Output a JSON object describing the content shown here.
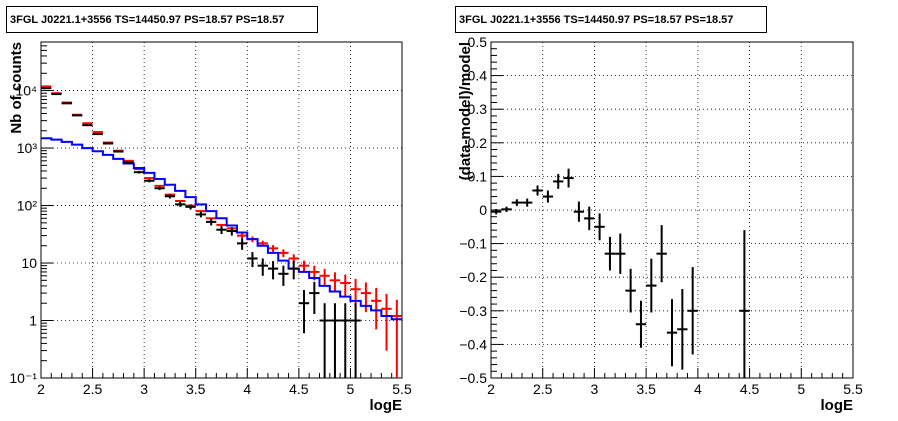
{
  "chart_data": [
    {
      "type": "line",
      "title": "3FGL J0221.1+3556 TS=14450.97 PS=18.57 PS=18.57",
      "xlabel": "logE",
      "ylabel": "Nb of counts",
      "xlim": [
        2,
        5.5
      ],
      "ylim": [
        0.1,
        70000
      ],
      "yscale": "log",
      "grid": true,
      "x_ticks": [
        "2",
        "2.5",
        "3",
        "3.5",
        "4",
        "4.5",
        "5",
        "5.5"
      ],
      "y_ticks": [
        "10⁻¹",
        "1",
        "10",
        "10²",
        "10³",
        "10⁴"
      ],
      "bin_edges": [
        2.0,
        2.1,
        2.2,
        2.3,
        2.4,
        2.5,
        2.6,
        2.7,
        2.8,
        2.9,
        3.0,
        3.1,
        3.2,
        3.3,
        3.4,
        3.5,
        3.6,
        3.7,
        3.8,
        3.9,
        4.0,
        4.1,
        4.2,
        4.3,
        4.4,
        4.5,
        4.6,
        4.7,
        4.8,
        4.9,
        5.0,
        5.1,
        5.2,
        5.3,
        5.4,
        5.5
      ],
      "series": [
        {
          "role": "data",
          "color": "#000000",
          "x": [
            2.05,
            2.15,
            2.25,
            2.35,
            2.45,
            2.55,
            2.65,
            2.75,
            2.85,
            2.95,
            3.05,
            3.15,
            3.25,
            3.35,
            3.45,
            3.55,
            3.65,
            3.75,
            3.85,
            3.95,
            4.05,
            4.15,
            4.25,
            4.35,
            4.45,
            4.55,
            4.65,
            4.75,
            4.85,
            4.95,
            5.05
          ],
          "y": [
            11000,
            8700,
            6000,
            3700,
            2500,
            1750,
            1200,
            870,
            560,
            380,
            270,
            200,
            145,
            105,
            95,
            70,
            52,
            38,
            36,
            22,
            12,
            9,
            8,
            6.5,
            8,
            2,
            3,
            1,
            1,
            1,
            1
          ],
          "yerr_lo": [
            105,
            93,
            77,
            61,
            50,
            42,
            35,
            30,
            24,
            19,
            16,
            14,
            12,
            10,
            10,
            8,
            7,
            6,
            6,
            5,
            3.5,
            3,
            2.8,
            2.5,
            2.8,
            1.4,
            1.7,
            0.9,
            0.9,
            0.9,
            0.9
          ],
          "yerr_hi": [
            105,
            93,
            77,
            61,
            50,
            42,
            35,
            30,
            24,
            19,
            16,
            14,
            12,
            10,
            10,
            8,
            7,
            6,
            6,
            5,
            3.5,
            3,
            2.8,
            2.5,
            2.8,
            1.4,
            1.7,
            1,
            1,
            1,
            1
          ]
        },
        {
          "role": "model-total",
          "color": "#ff0000",
          "bins": [
            11800,
            9000,
            6200,
            3800,
            2700,
            1900,
            1250,
            900,
            600,
            430,
            300,
            220,
            155,
            120,
            100,
            80,
            60,
            46,
            40,
            30,
            26,
            22,
            18,
            15,
            12,
            9,
            7,
            6,
            5,
            4.5,
            3.5,
            3,
            2.2,
            1.6,
            1.2
          ],
          "errors": [
            0,
            0,
            0,
            0,
            0,
            0,
            0,
            0,
            0,
            0,
            0,
            0,
            0,
            0,
            0,
            0,
            0,
            0,
            0,
            3,
            3,
            2.5,
            2.5,
            2.3,
            2.2,
            2,
            2,
            1.9,
            1.9,
            1.8,
            1.8,
            1.6,
            1.5,
            1.3,
            1.1
          ]
        },
        {
          "role": "model-source",
          "color": "#0000ff",
          "bins": [
            1480,
            1400,
            1280,
            1150,
            1000,
            880,
            760,
            650,
            540,
            450,
            370,
            290,
            230,
            180,
            140,
            105,
            80,
            60,
            45,
            34,
            26,
            20,
            15,
            11,
            8,
            7,
            5.5,
            4,
            3.2,
            2.6,
            2.2,
            1.8,
            1.5,
            1.2,
            1.05
          ]
        }
      ]
    },
    {
      "type": "scatter",
      "title": "3FGL J0221.1+3556 TS=14450.97 PS=18.57 PS=18.57",
      "xlabel": "logE",
      "ylabel": "(data-model)/model",
      "xlim": [
        2,
        5.5
      ],
      "ylim": [
        -0.5,
        0.5
      ],
      "grid": true,
      "x_ticks": [
        "2",
        "2.5",
        "3",
        "3.5",
        "4",
        "4.5",
        "5",
        "5.5"
      ],
      "y_ticks": [
        "−0.5",
        "−0.4",
        "−0.3",
        "−0.2",
        "−0.1",
        "0",
        "0.1",
        "0.2",
        "0.3",
        "0.4",
        "0.5"
      ],
      "series": [
        {
          "color": "#000000",
          "x": [
            2.05,
            2.15,
            2.25,
            2.35,
            2.45,
            2.55,
            2.65,
            2.75,
            2.85,
            2.95,
            3.05,
            3.15,
            3.25,
            3.35,
            3.45,
            3.55,
            3.65,
            3.75,
            3.85,
            3.95,
            4.45
          ],
          "y": [
            -0.005,
            0.002,
            0.022,
            0.022,
            0.058,
            0.04,
            0.085,
            0.095,
            -0.005,
            -0.025,
            -0.05,
            -0.13,
            -0.13,
            -0.24,
            -0.34,
            -0.225,
            -0.13,
            -0.365,
            -0.355,
            -0.3,
            -0.3
          ],
          "yerr": [
            0.008,
            0.008,
            0.01,
            0.012,
            0.015,
            0.018,
            0.022,
            0.028,
            0.03,
            0.035,
            0.04,
            0.05,
            0.06,
            0.065,
            0.07,
            0.08,
            0.085,
            0.1,
            0.12,
            0.13,
            0.24
          ]
        }
      ]
    }
  ]
}
